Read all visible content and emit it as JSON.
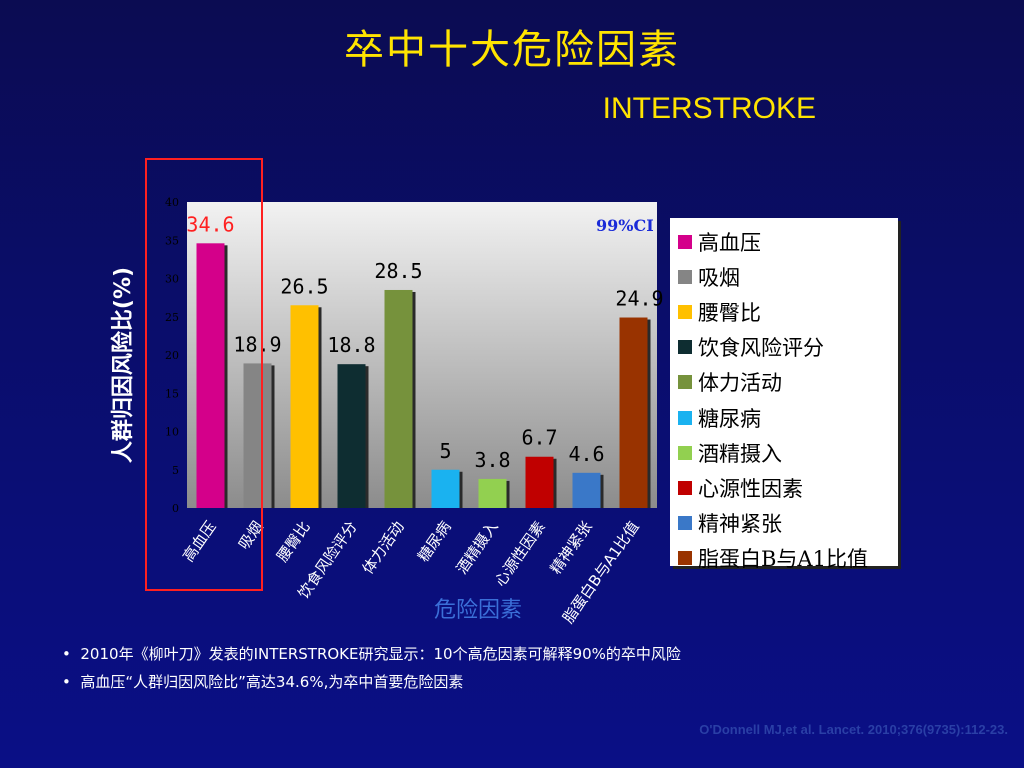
{
  "slide": {
    "title": "卒中十大危险因素",
    "subtitle": "INTERSTROKE",
    "bullets": [
      "2010年《柳叶刀》发表的INTERSTROKE研究显示：10个高危因素可解释90%的卒中风险",
      "高血压“人群归因风险比”高达34.6%,为卒中首要危险因素"
    ],
    "citation": "O'Donnell MJ,et al. Lancet. 2010;376(9735):112-23."
  },
  "chart_data": {
    "type": "bar",
    "ylabel": "人群归因风险比(%)",
    "xlabel": "危险因素",
    "ylim": [
      0,
      40
    ],
    "yticks": [
      0,
      5,
      10,
      15,
      20,
      25,
      30,
      35,
      40
    ],
    "categories": [
      "高血压",
      "吸烟",
      "腰臀比",
      "饮食风险评分",
      "体力活动",
      "糖尿病",
      "酒精摄入",
      "心源性因素",
      "精神紧张",
      "脂蛋白B与A1比值"
    ],
    "values": [
      34.6,
      18.9,
      26.5,
      18.8,
      28.5,
      5,
      3.8,
      6.7,
      4.6,
      24.9
    ],
    "data_labels": [
      "34.6",
      "18.9",
      "26.5",
      "18.8",
      "28.5",
      "5",
      "3.8",
      "6.7",
      "4.6",
      "24.9"
    ],
    "colors": [
      "#d4008a",
      "#858585",
      "#ffc000",
      "#0e2d31",
      "#76923c",
      "#1ab2f0",
      "#92d050",
      "#c00000",
      "#3a78c8",
      "#993300"
    ],
    "ci_label": "99%CI",
    "legend": {
      "position": "right",
      "entries": [
        "高血压",
        "吸烟",
        "腰臀比",
        "饮食风险评分",
        "体力活动",
        "糖尿病",
        "酒精摄入",
        "心源性因素",
        "精神紧张",
        "脂蛋白B与A1比值"
      ]
    },
    "grid": false,
    "highlight_category": "高血压"
  }
}
